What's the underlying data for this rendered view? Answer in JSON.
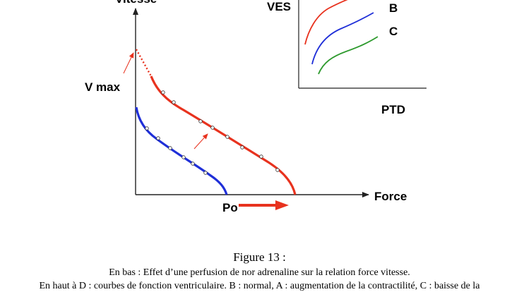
{
  "main_plot": {
    "y_axis_label": "Vitesse",
    "x_axis_label": "Force",
    "vmax_label": "V max",
    "po_label": "Po"
  },
  "inset_plot": {
    "y_axis_label": "VES",
    "x_axis_label": "PTD",
    "curve_labels": [
      "B",
      "C"
    ]
  },
  "caption": {
    "title": "Figure 13 :",
    "line1": "En bas : Effet d’une perfusion de nor adrenaline sur la relation force vitesse.",
    "line2": "En haut à D : courbes de fonction ventriculaire. B : normal, A : augmentation de la contractilité, C : baisse de la"
  },
  "colors": {
    "red_curve": "#e8321e",
    "blue_curve": "#1f2fd8",
    "green_curve": "#2e9a2e",
    "axis": "#222222"
  }
}
